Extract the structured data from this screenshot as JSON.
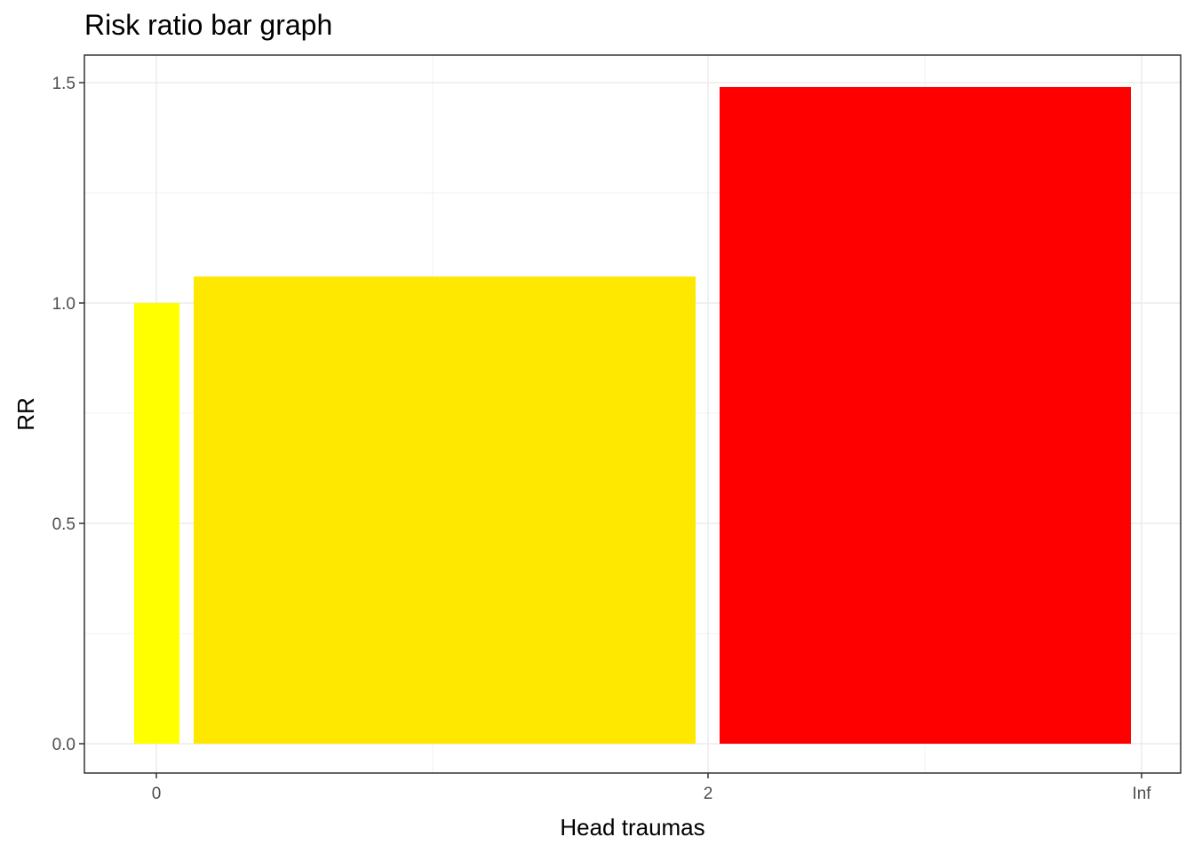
{
  "chart_data": {
    "type": "bar",
    "title": "Risk ratio bar graph",
    "xlabel": "Head traumas",
    "ylabel": "RR",
    "ylim": [
      -0.07,
      1.57
    ],
    "x_ticks": [
      "0",
      "2",
      "Inf"
    ],
    "y_ticks": [
      "0.0",
      "0.5",
      "1.0",
      "1.5"
    ],
    "y_tick_values": [
      0,
      0.5,
      1.0,
      1.5
    ],
    "grid": true,
    "legend": "none",
    "bars": [
      {
        "from": "",
        "to": "0",
        "value": 1.0,
        "color": "#FFFF00"
      },
      {
        "from": "0",
        "to": "2",
        "value": 1.06,
        "color": "#FFE800"
      },
      {
        "from": "2",
        "to": "Inf",
        "value": 1.49,
        "color": "#FF0000"
      }
    ]
  }
}
